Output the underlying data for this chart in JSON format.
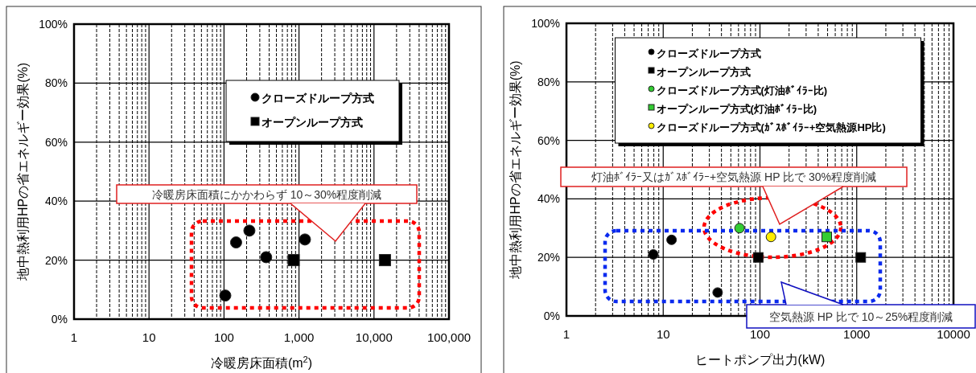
{
  "chart_data": [
    {
      "type": "scatter",
      "xlabel": "冷暖房床面積(m$^{2}$)",
      "ylabel": "地中熱利用HPの省エネルギー効果(%)",
      "log": "x",
      "grid": true,
      "legend": "top right",
      "xlim": [
        1,
        100000
      ],
      "ylim": [
        0,
        100
      ],
      "xticks": [
        1,
        10,
        100,
        {
          "value": 1000,
          "label": "1,000"
        },
        {
          "value": 10000,
          "label": "10,000"
        },
        {
          "value": 100000,
          "label": "100,000"
        }
      ],
      "yticks": [
        {
          "value": 0,
          "label": "0%"
        },
        {
          "value": 20,
          "label": "20%"
        },
        {
          "value": 40,
          "label": "40%"
        },
        {
          "value": 60,
          "label": "60%"
        },
        {
          "value": 80,
          "label": "80%"
        },
        {
          "value": 100,
          "label": "100%"
        }
      ],
      "series": [
        {
          "name": "クローズドループ方式",
          "color": "#000000",
          "marker": "circle",
          "x": [
            104,
            145,
            218,
            365,
            1200
          ],
          "values": [
            8,
            26,
            30,
            21,
            27
          ]
        },
        {
          "name": "オープンループ方式",
          "color": "#000000",
          "marker": "square",
          "x": [
            850,
            14000
          ],
          "values": [
            20,
            20
          ]
        }
      ],
      "annotations": [
        "冷暖房床面積にかかわらず 10～30%程度削減"
      ]
    },
    {
      "type": "scatter",
      "xlabel": "ヒートポンプ出力(kW)",
      "ylabel": "地中熱利用HPの省エネルギー効果(%)",
      "log": "x",
      "grid": true,
      "legend": "top",
      "xlim": [
        1,
        10000
      ],
      "ylim": [
        0,
        100
      ],
      "xticks": [
        1,
        10,
        100,
        1000,
        10000
      ],
      "yticks": [
        {
          "value": 0,
          "label": "0%"
        },
        {
          "value": 20,
          "label": "20%"
        },
        {
          "value": 40,
          "label": "40%"
        },
        {
          "value": 60,
          "label": "60%"
        },
        {
          "value": 80,
          "label": "80%"
        },
        {
          "value": 100,
          "label": "100%"
        }
      ],
      "series": [
        {
          "name": "クローズドループ方式",
          "color": "#000000",
          "marker": "circle",
          "x": [
            7.9,
            12.2,
            36.5
          ],
          "values": [
            21,
            26,
            8
          ]
        },
        {
          "name": "オープンループ方式",
          "color": "#000000",
          "marker": "square",
          "x": [
            96,
            1100
          ],
          "values": [
            20,
            20
          ]
        },
        {
          "name": "クローズドループ方式(灯油ﾎﾞｲﾗｰ比)",
          "color": "#33cc33",
          "marker": "circle",
          "x": [
            61.5
          ],
          "values": [
            30
          ]
        },
        {
          "name": "オープンループ方式(灯油ﾎﾞｲﾗｰ比)",
          "color": "#33cc33",
          "marker": "square",
          "x": [
            490
          ],
          "values": [
            27
          ]
        },
        {
          "name": "クローズドループ方式(ｶﾞｽﾎﾞｲﾗｰ+空気熱源HP比)",
          "color": "#ffee00",
          "marker": "circle",
          "x": [
            130
          ],
          "values": [
            27
          ]
        }
      ],
      "annotations": [
        "灯油ﾎﾞｲﾗｰ又はｶﾞｽﾎﾞｲﾗｰ+空気熱源 HP 比で 30%程度削減",
        "空気熱源 HP 比で 10～25%程度削減"
      ]
    }
  ]
}
